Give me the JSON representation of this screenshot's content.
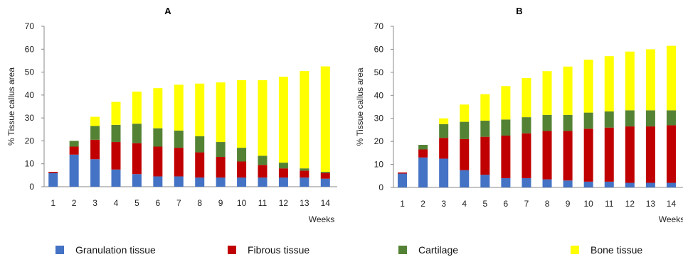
{
  "chart_data": [
    {
      "type": "bar",
      "stacked": true,
      "title": "A",
      "xlabel": "Weeks",
      "ylabel": "% Tissue callus area",
      "ylim": [
        0,
        70
      ],
      "yticks": [
        0,
        10,
        20,
        30,
        40,
        50,
        60,
        70
      ],
      "grid": false,
      "categories": [
        "1",
        "2",
        "3",
        "4",
        "5",
        "6",
        "7",
        "8",
        "9",
        "10",
        "11",
        "12",
        "13",
        "14"
      ],
      "series": [
        {
          "name": "Granulation tissue",
          "color": "#4472C4",
          "values": [
            6,
            14,
            12,
            7.5,
            5.5,
            4.5,
            4.5,
            4,
            4,
            4,
            4,
            4,
            4,
            3.5
          ]
        },
        {
          "name": "Fibrous tissue",
          "color": "#C00000",
          "values": [
            0.5,
            3.5,
            8.5,
            12,
            13.5,
            13,
            12.5,
            11,
            9,
            7,
            5.5,
            4,
            3,
            2.5
          ]
        },
        {
          "name": "Cartilage",
          "color": "#548235",
          "values": [
            0,
            2.5,
            6,
            7.5,
            8.5,
            8,
            7.5,
            7,
            6.5,
            6,
            4,
            2.5,
            1,
            0.5
          ]
        },
        {
          "name": "Bone tissue",
          "color": "#FFFF00",
          "values": [
            0,
            0,
            4,
            10,
            14,
            17.5,
            20,
            23,
            26,
            29.5,
            33,
            37.5,
            42.5,
            46
          ]
        }
      ]
    },
    {
      "type": "bar",
      "stacked": true,
      "title": "B",
      "xlabel": "Weeks",
      "ylabel": "% Tissue callus area",
      "ylim": [
        0,
        70
      ],
      "yticks": [
        0,
        10,
        20,
        30,
        40,
        50,
        60,
        70
      ],
      "grid": false,
      "categories": [
        "1",
        "2",
        "3",
        "4",
        "5",
        "6",
        "7",
        "8",
        "9",
        "10",
        "11",
        "12",
        "13",
        "14"
      ],
      "series": [
        {
          "name": "Granulation tissue",
          "color": "#4472C4",
          "values": [
            6,
            13,
            12.5,
            7.5,
            5.5,
            4,
            4,
            3.5,
            3,
            2.5,
            2.5,
            2,
            2,
            2
          ]
        },
        {
          "name": "Fibrous tissue",
          "color": "#C00000",
          "values": [
            0.5,
            3.5,
            9,
            13.5,
            16.5,
            18.5,
            19.5,
            21,
            21.5,
            23,
            23.5,
            24.5,
            24.5,
            25
          ]
        },
        {
          "name": "Cartilage",
          "color": "#548235",
          "values": [
            0,
            2,
            6,
            7.5,
            7,
            7,
            7,
            7,
            7,
            7,
            7,
            7,
            7,
            6.5
          ]
        },
        {
          "name": "Bone tissue",
          "color": "#FFFF00",
          "values": [
            0,
            0,
            2.5,
            7.5,
            11.5,
            14.5,
            17,
            19,
            21,
            23,
            24,
            25.5,
            26.5,
            28
          ]
        }
      ]
    }
  ],
  "legend": {
    "position": "bottom",
    "items": [
      {
        "label": "Granulation tissue",
        "color": "#4472C4"
      },
      {
        "label": "Fibrous tissue",
        "color": "#C00000"
      },
      {
        "label": "Cartilage",
        "color": "#548235"
      },
      {
        "label": "Bone tissue",
        "color": "#FFFF00"
      }
    ]
  }
}
